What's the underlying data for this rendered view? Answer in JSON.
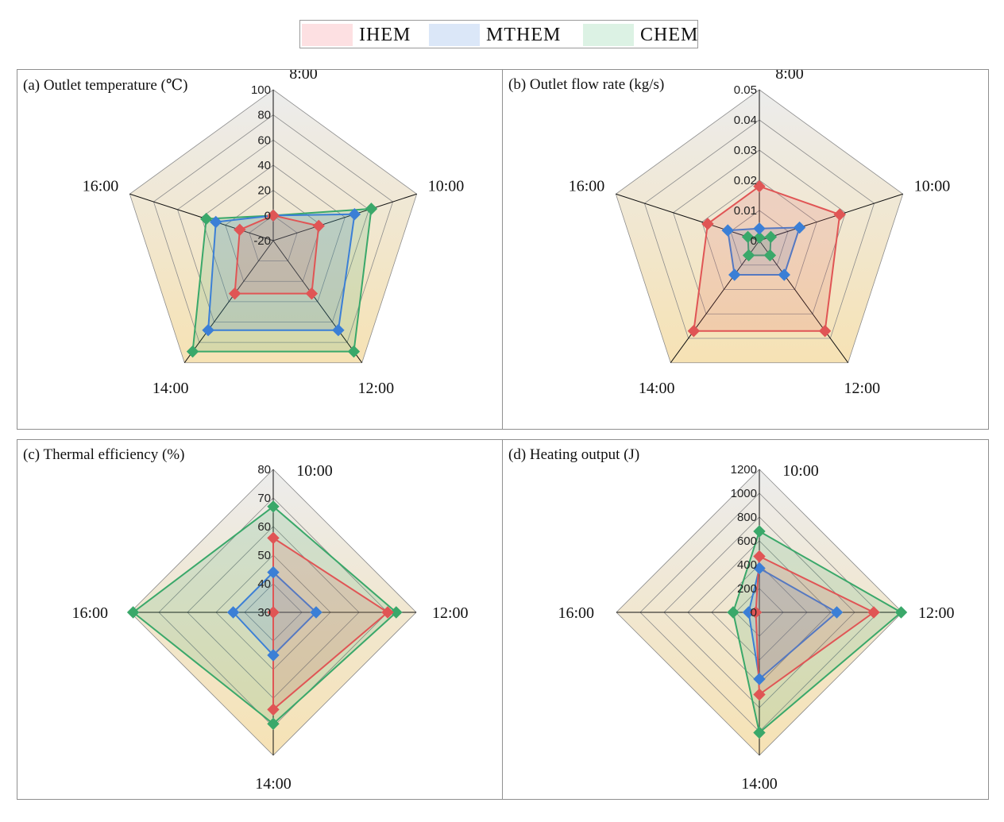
{
  "legend": {
    "items": [
      {
        "label": "IHEM",
        "color": "#e05555",
        "fill": "#fde0e2"
      },
      {
        "label": "MTHEM",
        "color": "#3b7fd6",
        "fill": "#dbe7f8"
      },
      {
        "label": "CHEM",
        "color": "#3aa86a",
        "fill": "#dcf2e4"
      }
    ]
  },
  "chart_data": [
    {
      "type": "radar",
      "title": "(a) Outlet temperature (℃)",
      "axes": [
        "8:00",
        "10:00",
        "12:00",
        "14:00",
        "16:00"
      ],
      "rlim": [
        -20,
        100
      ],
      "rticks": [
        "-20",
        "0",
        "20",
        "40",
        "60",
        "80",
        "100"
      ],
      "series": [
        {
          "name": "IHEM",
          "values": [
            0,
            18,
            32,
            32,
            8
          ]
        },
        {
          "name": "MTHEM",
          "values": [
            0,
            48,
            68,
            68,
            28
          ]
        },
        {
          "name": "CHEM",
          "values": [
            0,
            62,
            89,
            89,
            36
          ]
        }
      ]
    },
    {
      "type": "radar",
      "title": "(b) Outlet flow rate (kg/s)",
      "axes": [
        "8:00",
        "10:00",
        "12:00",
        "14:00",
        "16:00"
      ],
      "rlim": [
        0,
        0.05
      ],
      "rticks": [
        "0",
        "0.01",
        "0.02",
        "0.03",
        "0.04",
        "0.05"
      ],
      "series": [
        {
          "name": "IHEM",
          "values": [
            0.018,
            0.028,
            0.037,
            0.037,
            0.018
          ]
        },
        {
          "name": "MTHEM",
          "values": [
            0.004,
            0.014,
            0.014,
            0.014,
            0.011
          ]
        },
        {
          "name": "CHEM",
          "values": [
            0.001,
            0.004,
            0.006,
            0.006,
            0.004
          ]
        }
      ]
    },
    {
      "type": "radar",
      "title": "(c) Thermal efficiency (%)",
      "axes": [
        "10:00",
        "12:00",
        "14:00",
        "16:00"
      ],
      "rlim": [
        30,
        80
      ],
      "rticks": [
        "30",
        "40",
        "50",
        "60",
        "70",
        "80"
      ],
      "series": [
        {
          "name": "IHEM",
          "values": [
            56,
            70,
            64,
            30
          ]
        },
        {
          "name": "MTHEM",
          "values": [
            44,
            45,
            45,
            44
          ]
        },
        {
          "name": "CHEM",
          "values": [
            67,
            73,
            69,
            79
          ]
        }
      ]
    },
    {
      "type": "radar",
      "title": "(d) Heating output (J)",
      "axes": [
        "10:00",
        "12:00",
        "14:00",
        "16:00"
      ],
      "rlim": [
        0,
        1200
      ],
      "rticks": [
        "0",
        "200",
        "400",
        "600",
        "800",
        "1000",
        "1200"
      ],
      "series": [
        {
          "name": "IHEM",
          "values": [
            470,
            960,
            690,
            30
          ]
        },
        {
          "name": "MTHEM",
          "values": [
            370,
            650,
            560,
            90
          ]
        },
        {
          "name": "CHEM",
          "values": [
            680,
            1190,
            1010,
            220
          ]
        }
      ]
    }
  ]
}
